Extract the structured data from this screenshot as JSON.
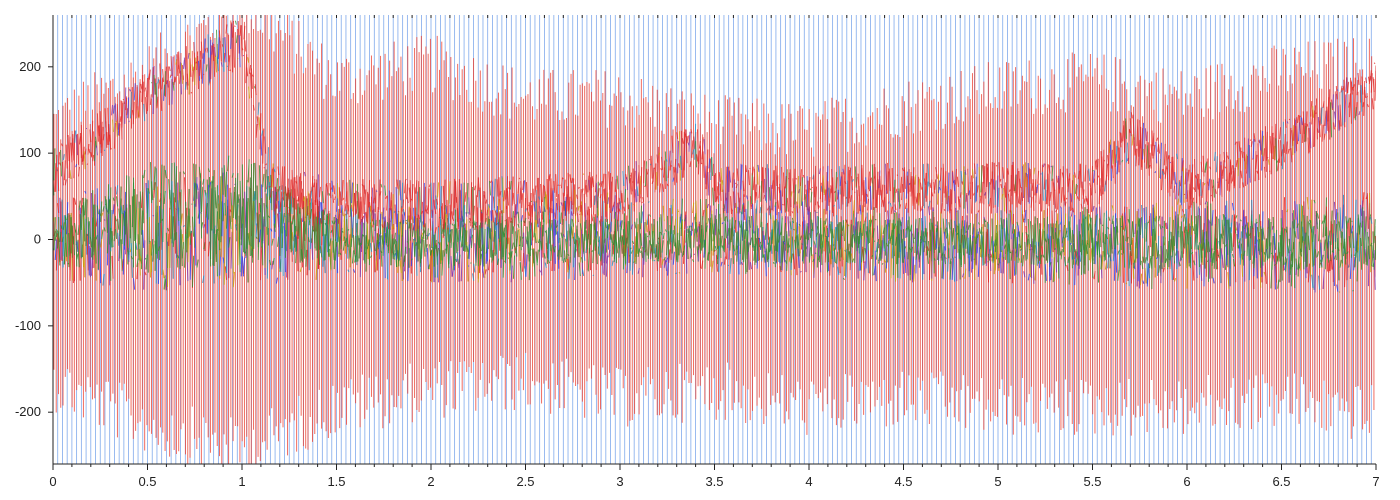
{
  "chart_data": {
    "type": "line",
    "title": "",
    "xlabel": "",
    "ylabel": "",
    "xlim": [
      0,
      7
    ],
    "ylim": [
      -260,
      260
    ],
    "grid": false,
    "x_ticks": [
      0,
      0.5,
      1,
      1.5,
      2,
      2.5,
      3,
      3.5,
      4,
      4.5,
      5,
      5.5,
      6,
      6.5,
      7
    ],
    "x_tick_labels": [
      "0",
      "0.5",
      "1",
      "1.5",
      "2",
      "2.5",
      "3",
      "3.5",
      "4",
      "4.5",
      "5",
      "5.5",
      "6",
      "6.5",
      "7"
    ],
    "y_ticks": [
      -200,
      -100,
      0,
      100,
      200
    ],
    "y_tick_labels": [
      "-200",
      "-100",
      "0",
      "100",
      "200"
    ],
    "colors": {
      "background": "#ffffff",
      "spike_blue": "#6a9be8",
      "spike_red": "#ee3b2b",
      "band": [
        "#e02020",
        "#2a3cf0",
        "#2e8b2e",
        "#7a2fb0",
        "#1e90c8",
        "#c8a000"
      ]
    },
    "series": [
      {
        "color": "#6a9be8",
        "style": "periodic full-range spikes",
        "x": [
          0,
          0.5,
          1,
          1.5,
          2,
          2.5,
          3,
          3.5,
          4,
          4.5,
          5,
          5.5,
          6,
          6.5,
          7
        ],
        "amplitude": [
          260,
          260,
          260,
          260,
          260,
          260,
          260,
          260,
          260,
          260,
          260,
          260,
          260,
          260,
          260
        ]
      },
      {
        "color": "#ee3b2b",
        "style": "dense oscillation envelope",
        "x": [
          0,
          0.5,
          1,
          1.5,
          2,
          2.5,
          3,
          3.5,
          4,
          4.5,
          5,
          5.5,
          6,
          6.5,
          7
        ],
        "upper": [
          120,
          180,
          260,
          170,
          190,
          150,
          150,
          120,
          110,
          140,
          160,
          170,
          150,
          180,
          190
        ],
        "lower": [
          -150,
          -200,
          -230,
          -180,
          -160,
          -150,
          -170,
          -160,
          -180,
          -170,
          -180,
          -180,
          -180,
          -170,
          -190
        ]
      },
      {
        "color": "#e02020",
        "style": "upper band",
        "x": [
          0,
          0.25,
          0.5,
          0.75,
          1,
          1.15,
          1.5,
          2,
          2.5,
          3,
          3.4,
          3.5,
          4,
          4.5,
          5,
          5.5,
          5.7,
          6,
          6.5,
          7
        ],
        "y": [
          80,
          120,
          170,
          200,
          230,
          60,
          40,
          40,
          45,
          50,
          110,
          60,
          55,
          60,
          60,
          60,
          120,
          60,
          110,
          180
        ]
      },
      {
        "color": "#2a3cf0",
        "style": "central band",
        "x": [
          0,
          0.5,
          1,
          1.5,
          2,
          2.5,
          3,
          3.5,
          4,
          4.5,
          5,
          5.5,
          6,
          6.5,
          7
        ],
        "upper": [
          50,
          70,
          80,
          40,
          40,
          45,
          45,
          50,
          40,
          40,
          35,
          40,
          45,
          50,
          60
        ],
        "lower": [
          -50,
          -60,
          -55,
          -45,
          -50,
          -50,
          -45,
          -40,
          -45,
          -50,
          -50,
          -55,
          -60,
          -60,
          -65
        ]
      },
      {
        "color": "#2e8b2e",
        "style": "central band",
        "x": [
          0,
          0.5,
          1,
          1.5,
          2,
          2.5,
          3,
          3.5,
          4,
          4.5,
          5,
          5.5,
          6,
          6.5,
          7
        ],
        "upper": [
          30,
          90,
          100,
          25,
          25,
          25,
          25,
          30,
          25,
          25,
          25,
          30,
          30,
          30,
          40
        ],
        "lower": [
          -30,
          -40,
          -30,
          -30,
          -35,
          -30,
          -30,
          -25,
          -30,
          -30,
          -30,
          -35,
          -35,
          -35,
          -40
        ]
      }
    ]
  }
}
